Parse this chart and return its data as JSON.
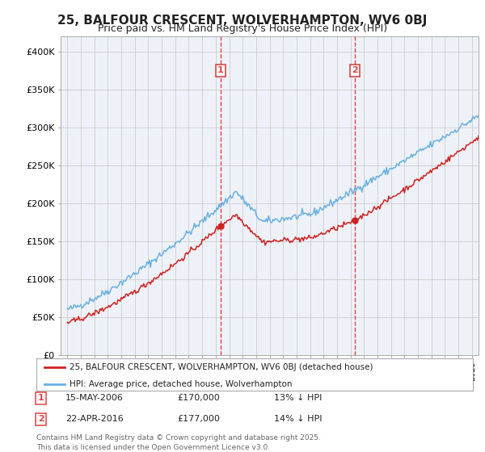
{
  "title_line1": "25, BALFOUR CRESCENT, WOLVERHAMPTON, WV6 0BJ",
  "title_line2": "Price paid vs. HM Land Registry's House Price Index (HPI)",
  "legend_label1": "25, BALFOUR CRESCENT, WOLVERHAMPTON, WV6 0BJ (detached house)",
  "legend_label2": "HPI: Average price, detached house, Wolverhampton",
  "sale1_date": "15-MAY-2006",
  "sale1_price": "£170,000",
  "sale1_hpi": "13% ↓ HPI",
  "sale2_date": "22-APR-2016",
  "sale2_price": "£177,000",
  "sale2_hpi": "14% ↓ HPI",
  "sale1_year": 2006.37,
  "sale1_value": 170000,
  "sale2_year": 2016.31,
  "sale2_value": 177000,
  "footer": "Contains HM Land Registry data © Crown copyright and database right 2025.\nThis data is licensed under the Open Government Licence v3.0.",
  "ylim": [
    0,
    420000
  ],
  "xlim_start": 1994.5,
  "xlim_end": 2025.5,
  "plot_bg": "#eef2f8",
  "line_color_hpi": "#6ab0e0",
  "line_color_sale": "#cc2222",
  "vline_color": "#dd4444",
  "grid_color": "#cccccc",
  "title_color": "#222222"
}
